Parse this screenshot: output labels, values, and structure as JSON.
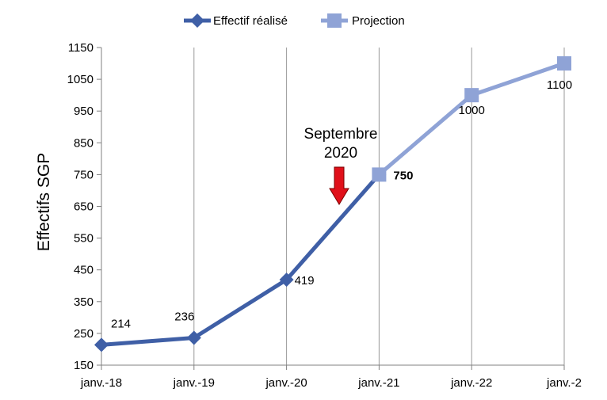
{
  "chart_data": {
    "type": "line",
    "x": [
      "janv.-18",
      "janv.-19",
      "janv.-20",
      "janv.-21",
      "janv.-22",
      "janv.-2"
    ],
    "ylabel": "Effectifs SGP",
    "yticks": [
      150,
      250,
      350,
      450,
      550,
      650,
      750,
      850,
      950,
      1050,
      1150
    ],
    "ylim": [
      150,
      1150
    ],
    "grid": "vertical",
    "legend_position": "top",
    "series": [
      {
        "name": "Effectif réalisé",
        "color": "#3F5FA6",
        "marker": "diamond",
        "points": [
          {
            "x": "janv.-18",
            "y": 214,
            "label": "214"
          },
          {
            "x": "janv.-19",
            "y": 236,
            "label": "236"
          },
          {
            "x": "janv.-20",
            "y": 419,
            "label": "419"
          },
          {
            "x": "janv.-21",
            "y": 750,
            "label": "750"
          }
        ]
      },
      {
        "name": "Projection",
        "color": "#8FA3D6",
        "marker": "square",
        "points": [
          {
            "x": "janv.-21",
            "y": 750
          },
          {
            "x": "janv.-22",
            "y": 1000,
            "label": "1000"
          },
          {
            "x": "janv.-2",
            "y": 1100,
            "label": "1100"
          }
        ]
      }
    ],
    "annotation": {
      "lines": [
        "Septembre",
        "2020"
      ],
      "arrow_color": "#E0101A",
      "x_between": [
        "janv.-20",
        "janv.-21"
      ]
    }
  }
}
